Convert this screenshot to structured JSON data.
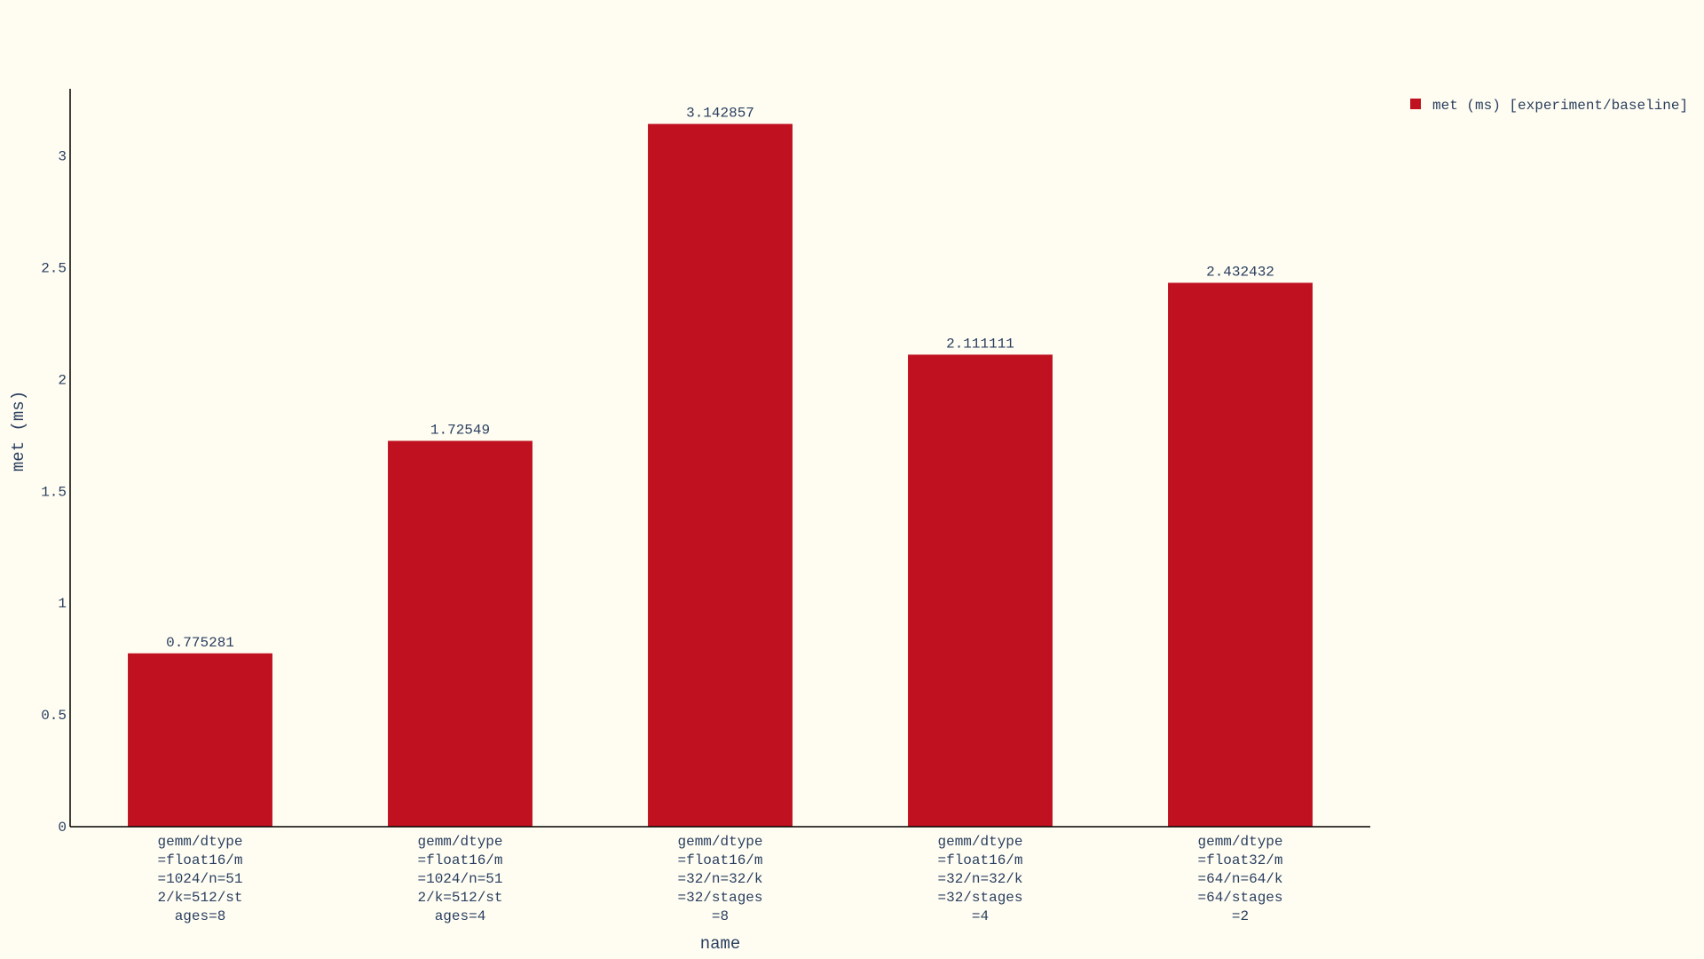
{
  "colors": {
    "background": "#fffdf2",
    "bar": "#c01120",
    "text": "#2a3f5f",
    "axis": "#000000"
  },
  "chart_data": {
    "type": "bar",
    "categories": [
      "gemm/dtype=float16/m=1024/n=512/k=512/stages=8",
      "gemm/dtype=float16/m=1024/n=512/k=512/stages=4",
      "gemm/dtype=float16/m=32/n=32/k=32/stages=8",
      "gemm/dtype=float16/m=32/n=32/k=32/stages=4",
      "gemm/dtype=float32/m=64/n=64/k=64/stages=2"
    ],
    "category_lines": [
      [
        "gemm/dtype",
        "=float16/m",
        "=1024/n=51",
        "2/k=512/st",
        "ages=8"
      ],
      [
        "gemm/dtype",
        "=float16/m",
        "=1024/n=51",
        "2/k=512/st",
        "ages=4"
      ],
      [
        "gemm/dtype",
        "=float16/m",
        "=32/n=32/k",
        "=32/stages",
        "=8"
      ],
      [
        "gemm/dtype",
        "=float16/m",
        "=32/n=32/k",
        "=32/stages",
        "=4"
      ],
      [
        "gemm/dtype",
        "=float32/m",
        "=64/n=64/k",
        "=64/stages",
        "=2"
      ]
    ],
    "series": [
      {
        "name": "met (ms) [experiment/baseline]",
        "values": [
          0.775281,
          1.72549,
          3.142857,
          2.111111,
          2.432432
        ],
        "labels": [
          "0.775281",
          "1.72549",
          "3.142857",
          "2.111111",
          "2.432432"
        ]
      }
    ],
    "xlabel": "name",
    "ylabel": "met (ms)",
    "ylim": [
      0,
      3.3
    ],
    "yticks": [
      0,
      0.5,
      1,
      1.5,
      2,
      2.5,
      3
    ],
    "ytick_labels": [
      "0",
      "0.5",
      "1",
      "1.5",
      "2",
      "2.5",
      "3"
    ],
    "grid": false,
    "legend_position": "top-right"
  }
}
